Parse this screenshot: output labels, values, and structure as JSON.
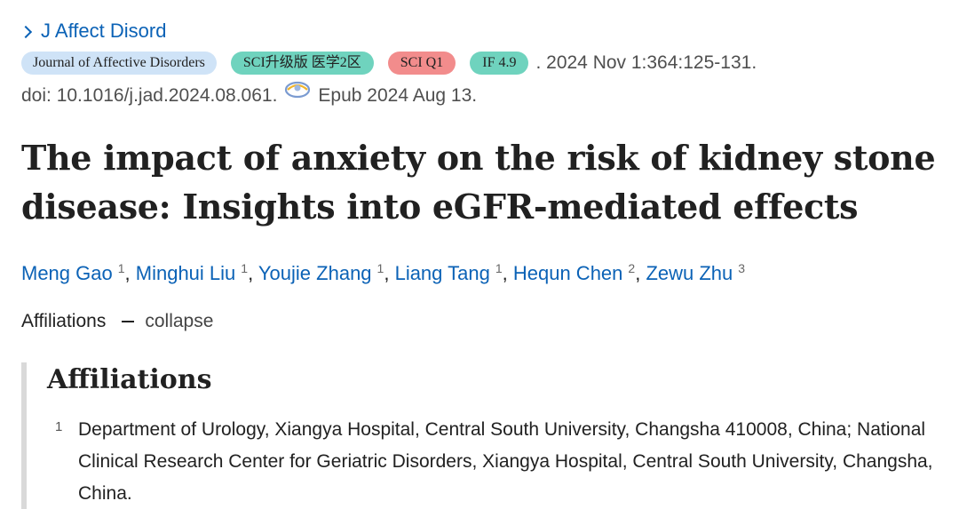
{
  "journal_link": {
    "label": "J Affect Disord"
  },
  "badges": {
    "journal": "Journal of Affective Disorders",
    "sci_partition": "SCI升级版 医学2区",
    "sci_quartile": "SCI Q1",
    "impact_factor": "IF 4.9"
  },
  "citation": {
    "date_volume_pages": ". 2024 Nov 1:364:125-131.",
    "doi": "doi: 10.1016/j.jad.2024.08.061.",
    "epub": "Epub 2024 Aug 13."
  },
  "title": {
    "line1": "The impact of anxiety on the risk of kidney stone",
    "line2": "disease: Insights into eGFR-mediated effects"
  },
  "authors": [
    {
      "name": "Meng Gao",
      "aff": "1"
    },
    {
      "name": "Minghui Liu",
      "aff": "1"
    },
    {
      "name": "Youjie Zhang",
      "aff": "1"
    },
    {
      "name": "Liang Tang",
      "aff": "1"
    },
    {
      "name": "Hequn Chen",
      "aff": "2"
    },
    {
      "name": "Zewu Zhu",
      "aff": "3"
    }
  ],
  "affiliations_toggle": {
    "label": "Affiliations",
    "action": "collapse"
  },
  "affiliations": {
    "heading": "Affiliations",
    "items": [
      {
        "num": "1",
        "text": "Department of Urology, Xiangya Hospital, Central South University, Changsha 410008, China; National Clinical Research Center for Geriatric Disorders, Xiangya Hospital, Central South University, Changsha, China."
      }
    ]
  },
  "colors": {
    "link": "#0b62b6",
    "badge_journal": "#cfe3f7",
    "badge_teal": "#6fd3be",
    "badge_red": "#f28c8c"
  }
}
